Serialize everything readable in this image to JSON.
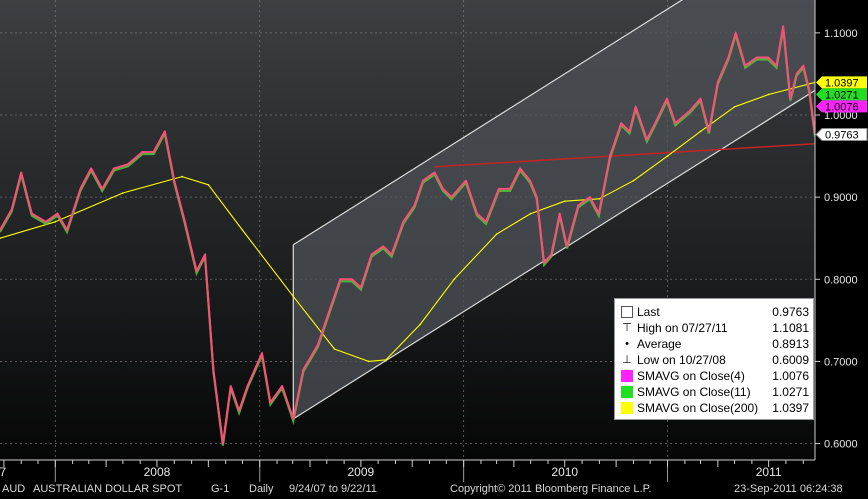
{
  "chart_data": {
    "type": "line",
    "footer": {
      "ticker": "AUD",
      "security_name": "AUSTRALIAN DOLLAR SPOT",
      "page_code": "G-1",
      "period": "Daily",
      "date_range": "9/24/07 to 9/22/11",
      "copyright": "Copyright© 2011 Bloomberg Finance L.P.",
      "timestamp": "23-Sep-2011 06:24:38"
    },
    "x_axis": {
      "start": "2007-09-24",
      "end": "2011-09-22",
      "year_labels": [
        "7",
        "2008",
        "2009",
        "2010",
        "2011"
      ],
      "year_label_dates": [
        "2007-09-29",
        "2008-07-01",
        "2009-07-01",
        "2010-07-01",
        "2011-07-01"
      ]
    },
    "y_axis": {
      "min": 0.58,
      "max": 1.14,
      "ticks": [
        0.6,
        0.7,
        0.8,
        0.9,
        1.0,
        1.1
      ],
      "tick_labels": [
        "0.6000",
        "0.7000",
        "0.8000",
        "0.9000",
        "1.0000",
        "1.1000"
      ]
    },
    "grid": true,
    "series": [
      {
        "name": "AUD Australian Dollar Spot",
        "color": "#ff4d7a",
        "points": [
          [
            "2007-09-24",
            0.86
          ],
          [
            "2007-10-15",
            0.885
          ],
          [
            "2007-11-01",
            0.93
          ],
          [
            "2007-11-20",
            0.88
          ],
          [
            "2007-12-15",
            0.87
          ],
          [
            "2008-01-05",
            0.88
          ],
          [
            "2008-01-22",
            0.86
          ],
          [
            "2008-02-15",
            0.91
          ],
          [
            "2008-03-05",
            0.935
          ],
          [
            "2008-03-25",
            0.91
          ],
          [
            "2008-04-15",
            0.935
          ],
          [
            "2008-05-10",
            0.94
          ],
          [
            "2008-06-05",
            0.955
          ],
          [
            "2008-06-25",
            0.955
          ],
          [
            "2008-07-15",
            0.98
          ],
          [
            "2008-08-01",
            0.92
          ],
          [
            "2008-08-20",
            0.87
          ],
          [
            "2008-09-10",
            0.81
          ],
          [
            "2008-09-25",
            0.83
          ],
          [
            "2008-10-10",
            0.69
          ],
          [
            "2008-10-27",
            0.6
          ],
          [
            "2008-11-10",
            0.67
          ],
          [
            "2008-11-25",
            0.64
          ],
          [
            "2008-12-10",
            0.67
          ],
          [
            "2009-01-05",
            0.71
          ],
          [
            "2009-01-20",
            0.65
          ],
          [
            "2009-02-10",
            0.67
          ],
          [
            "2009-03-02",
            0.63
          ],
          [
            "2009-03-20",
            0.69
          ],
          [
            "2009-04-15",
            0.72
          ],
          [
            "2009-05-05",
            0.76
          ],
          [
            "2009-05-25",
            0.8
          ],
          [
            "2009-06-15",
            0.8
          ],
          [
            "2009-07-01",
            0.79
          ],
          [
            "2009-07-20",
            0.83
          ],
          [
            "2009-08-10",
            0.84
          ],
          [
            "2009-08-25",
            0.83
          ],
          [
            "2009-09-15",
            0.87
          ],
          [
            "2009-10-05",
            0.89
          ],
          [
            "2009-10-20",
            0.92
          ],
          [
            "2009-11-10",
            0.93
          ],
          [
            "2009-11-25",
            0.91
          ],
          [
            "2009-12-10",
            0.9
          ],
          [
            "2010-01-05",
            0.92
          ],
          [
            "2010-01-25",
            0.88
          ],
          [
            "2010-02-10",
            0.87
          ],
          [
            "2010-03-05",
            0.91
          ],
          [
            "2010-03-25",
            0.91
          ],
          [
            "2010-04-12",
            0.935
          ],
          [
            "2010-04-30",
            0.92
          ],
          [
            "2010-05-12",
            0.9
          ],
          [
            "2010-05-25",
            0.82
          ],
          [
            "2010-06-07",
            0.83
          ],
          [
            "2010-06-22",
            0.88
          ],
          [
            "2010-07-05",
            0.84
          ],
          [
            "2010-07-25",
            0.89
          ],
          [
            "2010-08-15",
            0.9
          ],
          [
            "2010-08-31",
            0.88
          ],
          [
            "2010-09-20",
            0.95
          ],
          [
            "2010-10-10",
            0.99
          ],
          [
            "2010-10-25",
            0.98
          ],
          [
            "2010-11-05",
            1.01
          ],
          [
            "2010-11-25",
            0.97
          ],
          [
            "2010-12-10",
            0.99
          ],
          [
            "2010-12-31",
            1.02
          ],
          [
            "2011-01-15",
            0.99
          ],
          [
            "2011-02-10",
            1.005
          ],
          [
            "2011-03-01",
            1.02
          ],
          [
            "2011-03-16",
            0.98
          ],
          [
            "2011-04-01",
            1.04
          ],
          [
            "2011-04-20",
            1.07
          ],
          [
            "2011-05-03",
            1.1
          ],
          [
            "2011-05-20",
            1.06
          ],
          [
            "2011-06-10",
            1.07
          ],
          [
            "2011-06-30",
            1.07
          ],
          [
            "2011-07-15",
            1.06
          ],
          [
            "2011-07-27",
            1.108
          ],
          [
            "2011-08-09",
            1.02
          ],
          [
            "2011-08-20",
            1.05
          ],
          [
            "2011-09-01",
            1.06
          ],
          [
            "2011-09-12",
            1.03
          ],
          [
            "2011-09-22",
            0.9763
          ]
        ]
      },
      {
        "name": "SMAVG on Close(200)",
        "color": "#ffff00",
        "points": [
          [
            "2007-09-24",
            0.85
          ],
          [
            "2008-01-01",
            0.87
          ],
          [
            "2008-05-01",
            0.905
          ],
          [
            "2008-08-15",
            0.925
          ],
          [
            "2008-10-01",
            0.915
          ],
          [
            "2008-12-01",
            0.86
          ],
          [
            "2009-03-01",
            0.78
          ],
          [
            "2009-05-15",
            0.715
          ],
          [
            "2009-07-15",
            0.7
          ],
          [
            "2009-08-15",
            0.702
          ],
          [
            "2009-10-15",
            0.745
          ],
          [
            "2009-12-15",
            0.8
          ],
          [
            "2010-03-01",
            0.855
          ],
          [
            "2010-05-01",
            0.88
          ],
          [
            "2010-07-01",
            0.895
          ],
          [
            "2010-09-01",
            0.898
          ],
          [
            "2010-11-01",
            0.92
          ],
          [
            "2011-01-01",
            0.95
          ],
          [
            "2011-03-01",
            0.98
          ],
          [
            "2011-05-01",
            1.01
          ],
          [
            "2011-07-01",
            1.025
          ],
          [
            "2011-09-22",
            1.0397
          ]
        ]
      }
    ],
    "annotations": {
      "channel": {
        "lower": [
          [
            "2009-03-02",
            0.63
          ],
          [
            "2011-09-22",
            1.03
          ]
        ],
        "upper": [
          [
            "2009-03-02",
            0.842
          ],
          [
            "2011-09-22",
            1.242
          ]
        ],
        "fill": "#4e5257",
        "line_color": "#dddddd"
      },
      "resistance_line": {
        "points": [
          [
            "2009-11-10",
            0.937
          ],
          [
            "2011-09-22",
            0.965
          ]
        ],
        "color": "#c22424"
      }
    },
    "axis_tags": [
      {
        "value": 1.0397,
        "label": "1.0397",
        "color": "#ffff00"
      },
      {
        "value": 1.0271,
        "label": "1.0271",
        "color": "#22dd22"
      },
      {
        "value": 1.0076,
        "label": "1.0076",
        "color": "#ff22ff"
      },
      {
        "value": 0.9763,
        "label": "0.9763",
        "color": "#ffffff"
      }
    ],
    "legend": [
      {
        "label": "Last",
        "value": "0.9763",
        "symbol": "square",
        "color": "#ffffff"
      },
      {
        "label": "High on 07/27/11",
        "value": "1.1081",
        "symbol": "high",
        "color": "#ffffff"
      },
      {
        "label": "Average",
        "value": "0.8913",
        "symbol": "average",
        "color": "#ffffff"
      },
      {
        "label": "Low on 10/27/08",
        "value": "0.6009",
        "symbol": "low",
        "color": "#ffffff"
      },
      {
        "label": "SMAVG on Close(4)",
        "value": "1.0076",
        "symbol": "square",
        "color": "#ff22ff"
      },
      {
        "label": "SMAVG on Close(11)",
        "value": "1.0271",
        "symbol": "square",
        "color": "#22dd22"
      },
      {
        "label": "SMAVG on Close(200)",
        "value": "1.0397",
        "symbol": "square",
        "color": "#ffff00"
      }
    ]
  }
}
